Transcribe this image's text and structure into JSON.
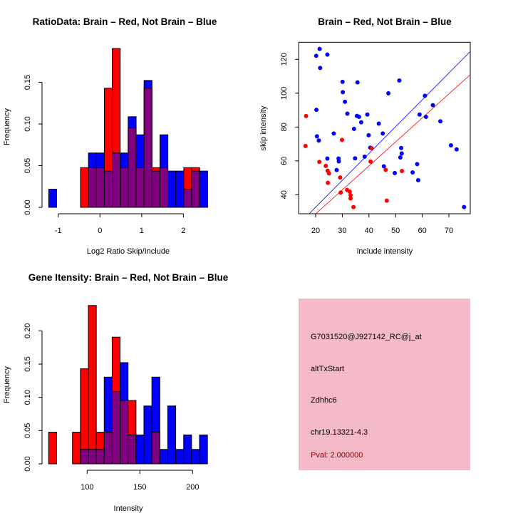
{
  "chart_data": [
    {
      "type": "bar",
      "title": "RatioData: Brain – Red, Not Brain – Blue",
      "xlabel": "Log2 Ratio Skip/Include",
      "ylabel": "Frequency",
      "xticks": [
        "-1",
        "0",
        "1",
        "2"
      ],
      "xtick_values": [
        -1,
        0,
        1,
        2
      ],
      "yticks": [
        "0.00",
        "0.05",
        "0.10",
        "0.15"
      ],
      "ytick_values": [
        0,
        0.05,
        0.1,
        0.15
      ],
      "bin_start": -1.228,
      "bin_width": 0.1904,
      "series": [
        {
          "name": "Not Brain",
          "color": "#0000ff",
          "values": [
            0.0217,
            0,
            0,
            0,
            0,
            0.0652,
            0.0652,
            0.0435,
            0.0652,
            0.0652,
            0.1087,
            0.087,
            0.1522,
            0.0435,
            0.087,
            0.0435,
            0.0435,
            0.0217,
            0.0435,
            0.0435
          ]
        },
        {
          "name": "Brain",
          "color": "#ff0000",
          "values": [
            0,
            0,
            0,
            0,
            0.0476,
            0.0476,
            0.0476,
            0.1429,
            0.1905,
            0.0476,
            0.0952,
            0.0476,
            0.1429,
            0.0476,
            0.0476,
            0,
            0,
            0.0476,
            0.0476,
            0
          ]
        }
      ],
      "overlap_color": "#800080"
    },
    {
      "type": "scatter",
      "title": "Brain – Red, Not Brain – Blue",
      "xlabel": "include intensity",
      "ylabel": "skip intensity",
      "xticks": [
        "20",
        "30",
        "40",
        "50",
        "60",
        "70"
      ],
      "xtick_values": [
        20,
        30,
        40,
        50,
        60,
        70
      ],
      "yticks": [
        "40",
        "60",
        "80",
        "100",
        "120"
      ],
      "ytick_values": [
        40,
        60,
        80,
        100,
        120
      ],
      "xlim": [
        13.7,
        78
      ],
      "ylim": [
        28.8,
        130.1
      ],
      "series": [
        {
          "name": "Not Brain",
          "color": "#0000ff",
          "points": [
            [
              20.2,
              122.1
            ],
            [
              21.5,
              126.2
            ],
            [
              24.4,
              122.8
            ],
            [
              21.7,
              114.9
            ],
            [
              30.1,
              106.7
            ],
            [
              35.7,
              106.4
            ],
            [
              30.2,
              100.6
            ],
            [
              31,
              94.9
            ],
            [
              31.9,
              87.9
            ],
            [
              20.3,
              90.2
            ],
            [
              35.5,
              86.6
            ],
            [
              36.3,
              86
            ],
            [
              39.4,
              87.4
            ],
            [
              37.1,
              82.8
            ],
            [
              43.7,
              82
            ],
            [
              47.3,
              99.9
            ],
            [
              51.4,
              107.5
            ],
            [
              61,
              98.5
            ],
            [
              64,
              92.9
            ],
            [
              59,
              87.4
            ],
            [
              61.4,
              86
            ],
            [
              66.8,
              83.4
            ],
            [
              26.8,
              76.2
            ],
            [
              34.4,
              78.9
            ],
            [
              39.9,
              75.2
            ],
            [
              45.2,
              76.2
            ],
            [
              20.5,
              74.5
            ],
            [
              21.2,
              72
            ],
            [
              40.5,
              67.8
            ],
            [
              52.1,
              67.6
            ],
            [
              52.3,
              64.4
            ],
            [
              51.8,
              62
            ],
            [
              70.8,
              69.2
            ],
            [
              72.9,
              66.8
            ],
            [
              24.4,
              61.4
            ],
            [
              28.6,
              61.4
            ],
            [
              28.7,
              59.7
            ],
            [
              34.8,
              61.5
            ],
            [
              38.4,
              62.5
            ],
            [
              27.9,
              54.6
            ],
            [
              45.6,
              56.8
            ],
            [
              49.7,
              52.8
            ],
            [
              56.4,
              53.2
            ],
            [
              58.1,
              58.1
            ],
            [
              58.5,
              48.6
            ],
            [
              75.7,
              32.7
            ]
          ],
          "line": {
            "intercept": 0.9,
            "slope": 1.586
          }
        },
        {
          "name": "Brain",
          "color": "#ff0000",
          "points": [
            [
              16.4,
              86.5
            ],
            [
              16.2,
              68.8
            ],
            [
              29.9,
              72.4
            ],
            [
              21.4,
              59.4
            ],
            [
              23.8,
              57
            ],
            [
              24.5,
              54.2
            ],
            [
              25,
              52.6
            ],
            [
              24.6,
              47
            ],
            [
              29.2,
              50.2
            ],
            [
              29.4,
              41.3
            ],
            [
              31.8,
              42.8
            ],
            [
              32.8,
              41.8
            ],
            [
              33.1,
              39.7
            ],
            [
              33.1,
              37.8
            ],
            [
              34.2,
              32.7
            ],
            [
              40.6,
              59.6
            ],
            [
              41,
              67.5
            ],
            [
              46.3,
              54.7
            ],
            [
              46.7,
              36.5
            ],
            [
              52.4,
              54
            ]
          ],
          "line": {
            "intercept": 0.3,
            "slope": 1.418
          }
        }
      ]
    },
    {
      "type": "bar",
      "title": "Gene Itensity: Brain – Red, Not Brain – Blue",
      "xlabel": "Intensity",
      "ylabel": "Frequency",
      "xticks": [
        "100",
        "150",
        "200"
      ],
      "xtick_values": [
        100,
        150,
        200
      ],
      "yticks": [
        "0.00",
        "0.05",
        "0.10",
        "0.15",
        "0.20"
      ],
      "ytick_values": [
        0,
        0.05,
        0.1,
        0.15,
        0.2
      ],
      "bin_start": 63.5,
      "bin_width": 7.53,
      "series": [
        {
          "name": "Not Brain",
          "color": "#0000ff",
          "values": [
            0,
            0,
            0,
            0,
            0.0217,
            0.0217,
            0.0217,
            0.1304,
            0.1087,
            0.1522,
            0.0435,
            0.0435,
            0.087,
            0.1304,
            0.0217,
            0.087,
            0.0217,
            0.0435,
            0.0217,
            0.0435
          ]
        },
        {
          "name": "Brain",
          "color": "#ff0000",
          "values": [
            0.0476,
            0,
            0,
            0.0476,
            0.1429,
            0.2381,
            0.0476,
            0.0476,
            0.1905,
            0.0952,
            0.0952,
            0,
            0,
            0.0476,
            0,
            0,
            0,
            0,
            0,
            0
          ]
        }
      ],
      "overlap_color": "#800080"
    }
  ],
  "info_panel": {
    "background": "#f2c1cc",
    "probe": "G7031520@J927142_RC@j_at",
    "event": "altTxStart",
    "gene": "Zdhhc6",
    "location": "chr19.13321-4.3",
    "pval": "Pval: 2.000000",
    "pval_color": "#8b0000"
  }
}
